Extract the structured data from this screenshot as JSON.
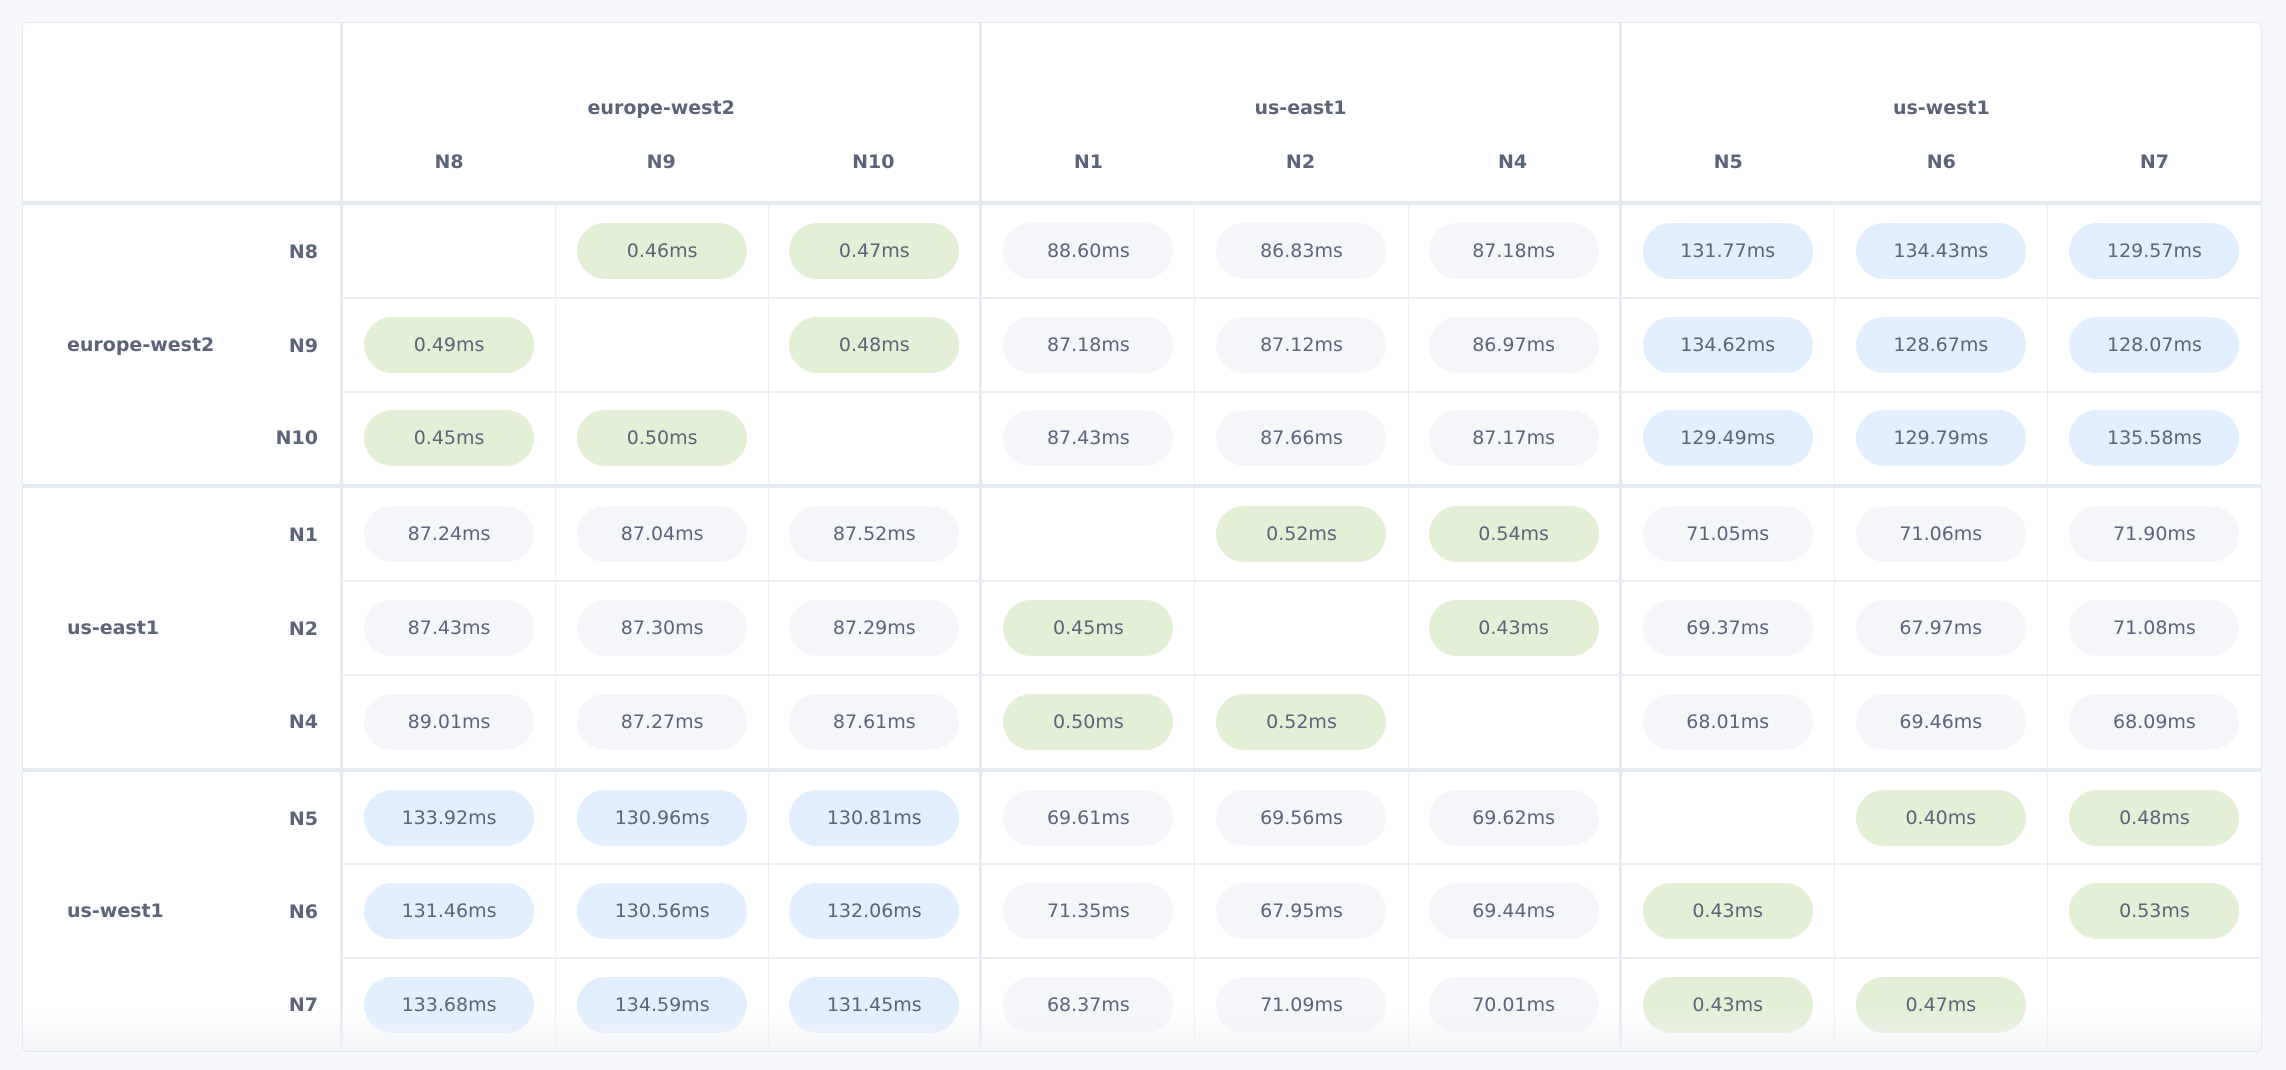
{
  "regions": [
    {
      "name": "europe-west2",
      "nodes": [
        "N8",
        "N9",
        "N10"
      ]
    },
    {
      "name": "us-east1",
      "nodes": [
        "N1",
        "N2",
        "N4"
      ]
    },
    {
      "name": "us-west1",
      "nodes": [
        "N5",
        "N6",
        "N7"
      ]
    }
  ],
  "colors": {
    "same_region": "#e3f0d6",
    "far_region": "#e1efff",
    "near_region": "#f4f6fa",
    "text": "#5b6479"
  },
  "region_pair_tone": [
    [
      "same_region",
      "near_region",
      "far_region"
    ],
    [
      "near_region",
      "same_region",
      "near_region"
    ],
    [
      "far_region",
      "near_region",
      "same_region"
    ]
  ],
  "latency_matrix": [
    [
      "",
      "0.46ms",
      "0.47ms",
      "88.60ms",
      "86.83ms",
      "87.18ms",
      "131.77ms",
      "134.43ms",
      "129.57ms"
    ],
    [
      "0.49ms",
      "",
      "0.48ms",
      "87.18ms",
      "87.12ms",
      "86.97ms",
      "134.62ms",
      "128.67ms",
      "128.07ms"
    ],
    [
      "0.45ms",
      "0.50ms",
      "",
      "87.43ms",
      "87.66ms",
      "87.17ms",
      "129.49ms",
      "129.79ms",
      "135.58ms"
    ],
    [
      "87.24ms",
      "87.04ms",
      "87.52ms",
      "",
      "0.52ms",
      "0.54ms",
      "71.05ms",
      "71.06ms",
      "71.90ms"
    ],
    [
      "87.43ms",
      "87.30ms",
      "87.29ms",
      "0.45ms",
      "",
      "0.43ms",
      "69.37ms",
      "67.97ms",
      "71.08ms"
    ],
    [
      "89.01ms",
      "87.27ms",
      "87.61ms",
      "0.50ms",
      "0.52ms",
      "",
      "68.01ms",
      "69.46ms",
      "68.09ms"
    ],
    [
      "133.92ms",
      "130.96ms",
      "130.81ms",
      "69.61ms",
      "69.56ms",
      "69.62ms",
      "",
      "0.40ms",
      "0.48ms"
    ],
    [
      "131.46ms",
      "130.56ms",
      "132.06ms",
      "71.35ms",
      "67.95ms",
      "69.44ms",
      "0.43ms",
      "",
      "0.53ms"
    ],
    [
      "133.68ms",
      "134.59ms",
      "131.45ms",
      "68.37ms",
      "71.09ms",
      "70.01ms",
      "0.43ms",
      "0.47ms",
      ""
    ]
  ]
}
